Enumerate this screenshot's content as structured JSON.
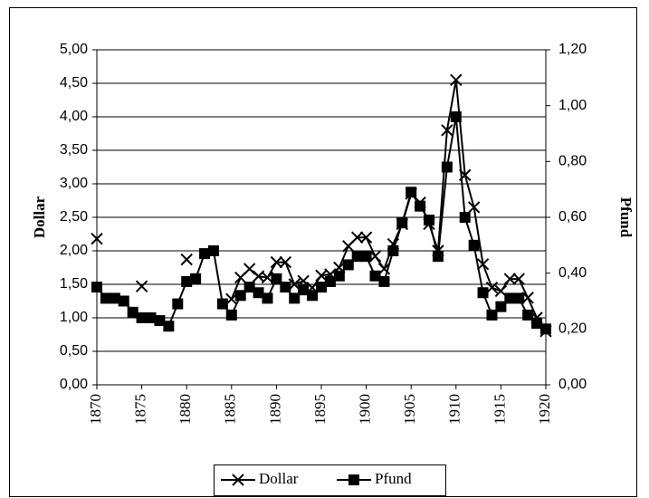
{
  "chart_data": {
    "type": "line",
    "ylabel": "Dollar",
    "y2label": "Pfund",
    "x": [
      1870,
      1871,
      1872,
      1873,
      1874,
      1875,
      1876,
      1877,
      1878,
      1879,
      1880,
      1881,
      1882,
      1883,
      1884,
      1885,
      1886,
      1887,
      1888,
      1889,
      1890,
      1891,
      1892,
      1893,
      1894,
      1895,
      1896,
      1897,
      1898,
      1899,
      1900,
      1901,
      1902,
      1903,
      1904,
      1905,
      1906,
      1907,
      1908,
      1909,
      1910,
      1911,
      1912,
      1913,
      1914,
      1915,
      1916,
      1917,
      1918,
      1919,
      1920
    ],
    "xlim": [
      1870,
      1920
    ],
    "xticks": [
      1870,
      1875,
      1880,
      1885,
      1890,
      1895,
      1900,
      1905,
      1910,
      1915,
      1920
    ],
    "ylim": [
      0,
      5
    ],
    "yticks": [
      {
        "value": 0,
        "label": "0,00"
      },
      {
        "value": 0.5,
        "label": "0,50"
      },
      {
        "value": 1,
        "label": "1,00"
      },
      {
        "value": 1.5,
        "label": "1,50"
      },
      {
        "value": 2,
        "label": "2,00"
      },
      {
        "value": 2.5,
        "label": "2,50"
      },
      {
        "value": 3,
        "label": "3,00"
      },
      {
        "value": 3.5,
        "label": "3,50"
      },
      {
        "value": 4,
        "label": "4,00"
      },
      {
        "value": 4.5,
        "label": "4,50"
      },
      {
        "value": 5,
        "label": "5,00"
      }
    ],
    "y2lim": [
      0,
      1.2
    ],
    "y2ticks": [
      {
        "value": 0,
        "label": "0,00"
      },
      {
        "value": 0.2,
        "label": "0,20"
      },
      {
        "value": 0.4,
        "label": "0,40"
      },
      {
        "value": 0.6,
        "label": "0,60"
      },
      {
        "value": 0.8,
        "label": "0,80"
      },
      {
        "value": 1,
        "label": "1,00"
      },
      {
        "value": 1.2,
        "label": "1,20"
      }
    ],
    "grid": true,
    "series": [
      {
        "name": "Dollar",
        "color": "#000000",
        "marker": "x",
        "values": [
          2.18,
          null,
          null,
          null,
          null,
          1.47,
          null,
          null,
          null,
          null,
          1.87,
          null,
          null,
          null,
          null,
          1.28,
          1.6,
          1.73,
          1.62,
          1.6,
          1.83,
          1.83,
          1.5,
          1.55,
          1.45,
          1.63,
          1.65,
          1.75,
          2.07,
          2.2,
          2.2,
          1.92,
          1.73,
          2.1,
          2.4,
          2.85,
          2.72,
          2.4,
          2.0,
          3.8,
          4.55,
          3.13,
          2.65,
          1.8,
          1.45,
          1.4,
          1.58,
          1.58,
          1.3,
          1.0,
          0.8
        ]
      },
      {
        "name": "Pfund",
        "color": "#000000",
        "marker": "square",
        "axis": "y2",
        "values": [
          0.35,
          0.31,
          0.31,
          0.3,
          0.26,
          0.24,
          0.24,
          0.23,
          0.21,
          0.29,
          0.37,
          0.38,
          0.47,
          0.48,
          0.29,
          0.25,
          0.32,
          0.35,
          0.33,
          0.31,
          0.38,
          0.35,
          0.31,
          0.34,
          0.32,
          0.35,
          0.37,
          0.39,
          0.43,
          0.46,
          0.46,
          0.39,
          0.37,
          0.48,
          0.58,
          0.69,
          0.64,
          0.59,
          0.46,
          0.78,
          0.96,
          0.6,
          0.5,
          0.33,
          0.25,
          0.28,
          0.31,
          0.31,
          0.25,
          0.22,
          0.2
        ]
      }
    ]
  }
}
